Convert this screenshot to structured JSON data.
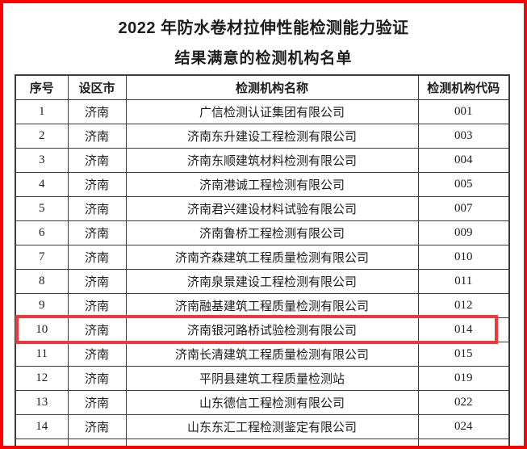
{
  "page": {
    "title": "2022 年防水卷材拉伸性能检测能力验证",
    "subtitle": "结果满意的检测机构名单"
  },
  "table": {
    "headers": [
      "序号",
      "设区市",
      "检测机构名称",
      "检测机构代码"
    ],
    "rows": [
      {
        "no": "1",
        "city": "济南",
        "name": "广信检测认证集团有限公司",
        "code": "001"
      },
      {
        "no": "2",
        "city": "济南",
        "name": "济南东升建设工程检测有限公司",
        "code": "003"
      },
      {
        "no": "3",
        "city": "济南",
        "name": "济南东顺建筑材料检测有限公司",
        "code": "004"
      },
      {
        "no": "4",
        "city": "济南",
        "name": "济南港诚工程检测有限公司",
        "code": "005"
      },
      {
        "no": "5",
        "city": "济南",
        "name": "济南君兴建设材料试验有限公司",
        "code": "007"
      },
      {
        "no": "6",
        "city": "济南",
        "name": "济南鲁桥工程检测有限公司",
        "code": "009"
      },
      {
        "no": "7",
        "city": "济南",
        "name": "济南齐森建筑工程质量检测有限公司",
        "code": "010"
      },
      {
        "no": "8",
        "city": "济南",
        "name": "济南泉景建设工程检测有限公司",
        "code": "011"
      },
      {
        "no": "9",
        "city": "济南",
        "name": "济南融基建筑工程质量检测有限公司",
        "code": "012"
      },
      {
        "no": "10",
        "city": "济南",
        "name": "济南银河路桥试验检测有限公司",
        "code": "014"
      },
      {
        "no": "11",
        "city": "济南",
        "name": "济南长清建筑工程质量检测有限公司",
        "code": "015"
      },
      {
        "no": "12",
        "city": "济南",
        "name": "平阴县建筑工程质量检测站",
        "code": "019"
      },
      {
        "no": "13",
        "city": "济南",
        "name": "山东德信工程检测有限公司",
        "code": "022"
      },
      {
        "no": "14",
        "city": "济南",
        "name": "山东东汇工程检测鉴定有限公司",
        "code": "024"
      }
    ],
    "highlighted_row_no": "10"
  },
  "colors": {
    "outer_border": "#fe0000",
    "highlight_box": "#ee383b",
    "table_border": "#3c3c3c",
    "text": "#1c1c1c"
  }
}
